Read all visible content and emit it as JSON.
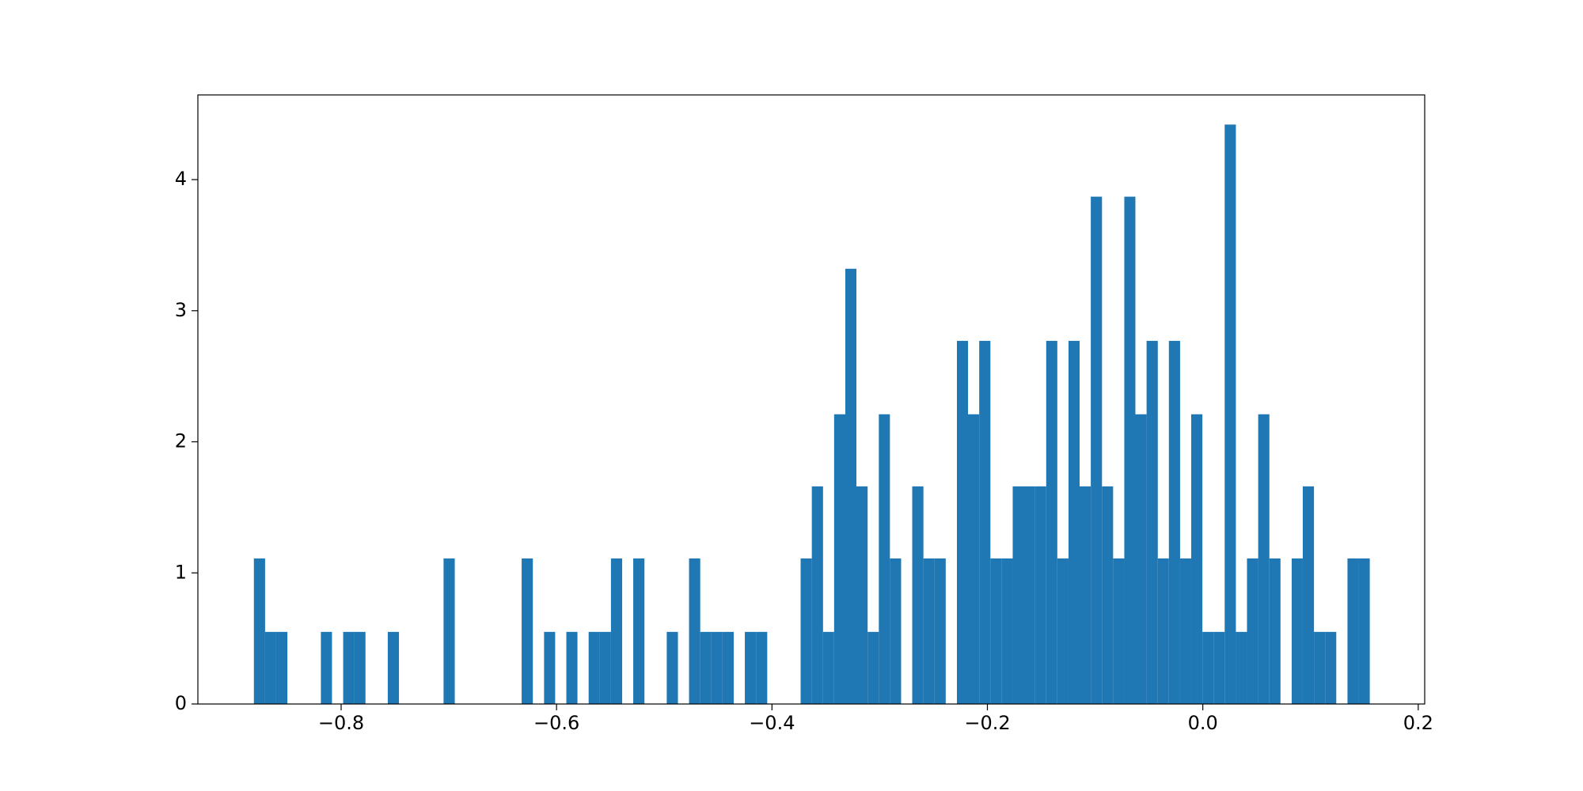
{
  "chart_data": {
    "type": "histogram",
    "color": "#1f77b4",
    "bins": [
      -0.881,
      -0.8706,
      -0.8603,
      -0.8499,
      -0.8396,
      -0.8292,
      -0.8188,
      -0.8085,
      -0.7981,
      -0.7878,
      -0.7774,
      -0.767,
      -0.7567,
      -0.7463,
      -0.736,
      -0.7256,
      -0.7152,
      -0.7049,
      -0.6945,
      -0.6842,
      -0.6738,
      -0.6634,
      -0.6531,
      -0.6427,
      -0.6324,
      -0.622,
      -0.6116,
      -0.6013,
      -0.5909,
      -0.5806,
      -0.5702,
      -0.5598,
      -0.5495,
      -0.5391,
      -0.5288,
      -0.5184,
      -0.508,
      -0.4977,
      -0.4873,
      -0.477,
      -0.4666,
      -0.4562,
      -0.4459,
      -0.4355,
      -0.4252,
      -0.4148,
      -0.4044,
      -0.3941,
      -0.3837,
      -0.3734,
      -0.363,
      -0.3526,
      -0.3423,
      -0.3319,
      -0.3216,
      -0.3112,
      -0.3008,
      -0.2905,
      -0.2801,
      -0.2698,
      -0.2594,
      -0.249,
      -0.2387,
      -0.2283,
      -0.218,
      -0.2076,
      -0.1972,
      -0.1869,
      -0.1765,
      -0.1662,
      -0.1558,
      -0.1454,
      -0.1351,
      -0.1247,
      -0.1144,
      -0.104,
      -0.0936,
      -0.0833,
      -0.0729,
      -0.0626,
      -0.0522,
      -0.0418,
      -0.0315,
      -0.0211,
      -0.0108,
      -0.0004,
      0.01,
      0.0203,
      0.0307,
      0.041,
      0.0514,
      0.0618,
      0.0721,
      0.0825,
      0.0928,
      0.1032,
      0.1136,
      0.1239,
      0.1343,
      0.1446,
      0.155
    ],
    "values": [
      1.11,
      0.55,
      0.55,
      0,
      0,
      0,
      0.55,
      0,
      0.55,
      0.55,
      0,
      0,
      0.55,
      0,
      0,
      0,
      0,
      1.11,
      0,
      0,
      0,
      0,
      0,
      0,
      1.11,
      0,
      0.55,
      0,
      0.55,
      0,
      0.55,
      0.55,
      1.11,
      0,
      1.11,
      0,
      0,
      0.55,
      0,
      1.11,
      0.55,
      0.55,
      0.55,
      0,
      0.55,
      0.55,
      0,
      0,
      0,
      1.11,
      1.66,
      0.55,
      2.21,
      3.32,
      1.66,
      0.55,
      2.21,
      1.11,
      0,
      1.66,
      1.11,
      1.11,
      0,
      2.77,
      2.21,
      2.77,
      1.11,
      1.11,
      1.66,
      1.66,
      1.66,
      2.77,
      1.11,
      2.77,
      1.66,
      3.87,
      1.66,
      1.11,
      3.87,
      2.21,
      2.77,
      1.11,
      2.77,
      1.11,
      2.21,
      0.55,
      0.55,
      4.42,
      0.55,
      1.11,
      2.21,
      1.11,
      0,
      1.11,
      1.66,
      0.55,
      0.55,
      0,
      1.11,
      1.11
    ],
    "xlim": [
      -0.933,
      0.206
    ],
    "xticks": [
      {
        "value": -0.8,
        "label": "−0.8"
      },
      {
        "value": -0.6,
        "label": "−0.6"
      },
      {
        "value": -0.4,
        "label": "−0.4"
      },
      {
        "value": -0.2,
        "label": "−0.2"
      },
      {
        "value": 0,
        "label": "0.0"
      },
      0.2
    ],
    "ylim": [
      0,
      4.646
    ],
    "yticks": [
      0,
      1,
      2,
      3,
      4
    ]
  }
}
